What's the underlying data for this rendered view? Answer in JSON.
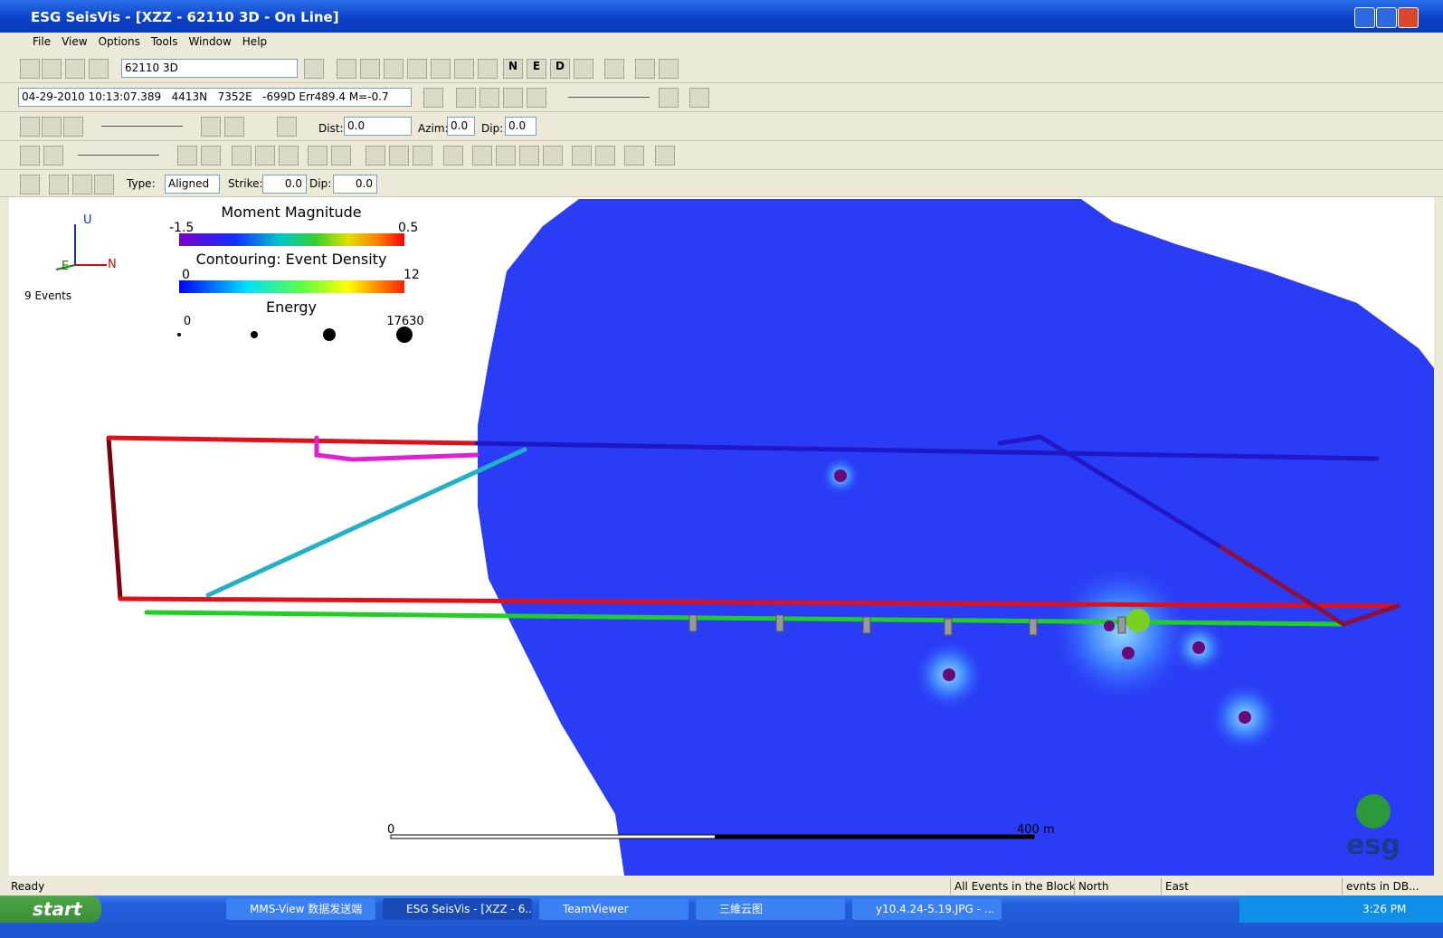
{
  "window": {
    "title": "ESG SeisVis - [XZZ - 62110 3D - On Line]"
  },
  "menu": [
    "File",
    "View",
    "Options",
    "Tools",
    "Window",
    "Help"
  ],
  "toolbar": {
    "project": "62110 3D",
    "view_buttons": [
      "N",
      "E",
      "D"
    ],
    "event_info": "04-29-2010 10:13:07.389   4413N   7352E   -699D Err489.4 M=-0.7",
    "dist_label": "Dist:",
    "dist": "0.0",
    "azim_label": "Azim:",
    "azim": "0.0",
    "dip_label": "Dip:",
    "dip": "0.0",
    "type_label": "Type:",
    "type": "Aligned",
    "strike_label": "Strike:",
    "strike": "0.0",
    "plane_dip_label": "Dip:",
    "plane_dip": "0.0"
  },
  "view": {
    "axes": [
      "U",
      "E",
      "N"
    ],
    "event_count": "9 Events",
    "legend": {
      "magnitude_title": "Moment Magnitude",
      "magnitude_min": "-1.5",
      "magnitude_max": "0.5",
      "density_title": "Contouring: Event Density",
      "density_min": "0",
      "density_max": "12",
      "energy_title": "Energy",
      "energy_min": "0",
      "energy_max": "17630"
    },
    "scale": {
      "start": "0",
      "end": "400 m"
    },
    "logo": "esg"
  },
  "status": [
    "Ready",
    "All Events in the Block",
    "North",
    "East",
    "evnts in DB..."
  ],
  "taskbar": {
    "start": "start",
    "items": [
      "MMS-View 数据发送端",
      "ESG SeisVis - [XZZ - 6...",
      "TeamViewer",
      "三維云图",
      "y10.4.24-5.19.JPG - ..."
    ],
    "clock": "3:26 PM"
  }
}
